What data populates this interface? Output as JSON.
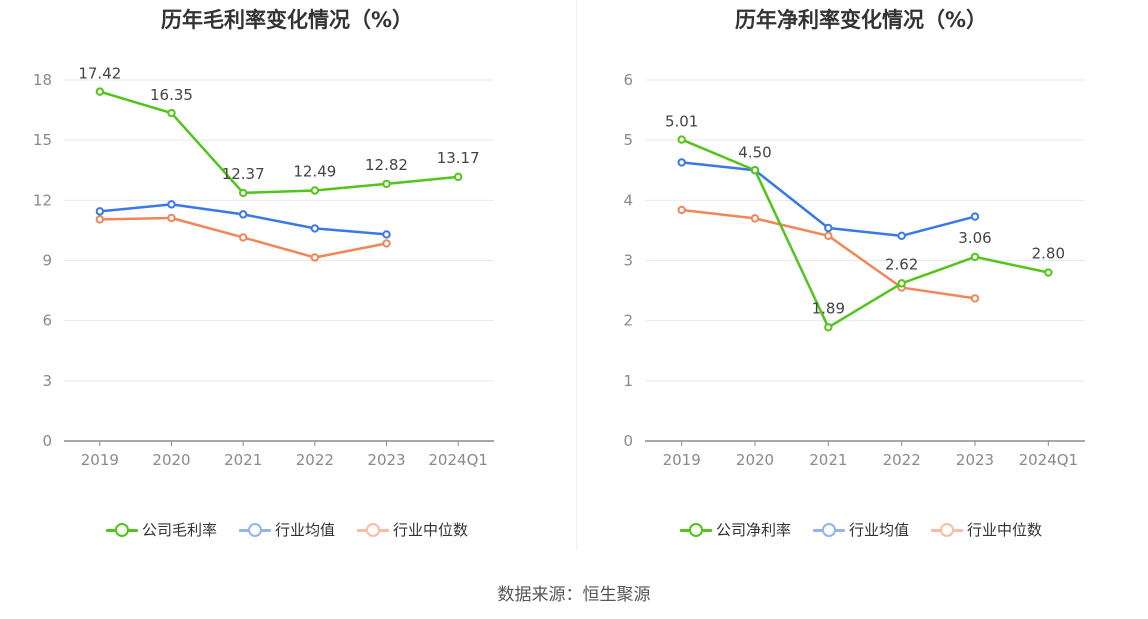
{
  "charts": [
    {
      "title": "历年毛利率变化情况（%）",
      "legend": [
        "公司毛利率",
        "行业均值",
        "行业中位数"
      ]
    },
    {
      "title": "历年净利率变化情况（%）",
      "legend": [
        "公司净利率",
        "行业均值",
        "行业中位数"
      ]
    }
  ],
  "source": "数据来源：恒生聚源",
  "colors": {
    "company": "#52c41a",
    "mean": "#3b78e7",
    "median": "#f0865a"
  },
  "chart_data": [
    {
      "type": "line",
      "title": "历年毛利率变化情况（%）",
      "categories": [
        "2019",
        "2020",
        "2021",
        "2022",
        "2023",
        "2024Q1"
      ],
      "ylim": [
        0,
        18
      ],
      "yticks": [
        0,
        3,
        6,
        9,
        12,
        15,
        18
      ],
      "grid": true,
      "legend_position": "bottom",
      "series": [
        {
          "name": "公司毛利率",
          "color": "#52c41a",
          "values": [
            17.42,
            16.35,
            12.37,
            12.49,
            12.82,
            13.17
          ],
          "labels": [
            "17.42",
            "16.35",
            "12.37",
            "12.49",
            "12.82",
            "13.17"
          ]
        },
        {
          "name": "行业均值",
          "color": "#3b78e7",
          "values": [
            11.45,
            11.8,
            11.3,
            10.6,
            10.3,
            null
          ]
        },
        {
          "name": "行业中位数",
          "color": "#f0865a",
          "values": [
            11.05,
            11.12,
            10.15,
            9.15,
            9.85,
            null
          ]
        }
      ]
    },
    {
      "type": "line",
      "title": "历年净利率变化情况（%）",
      "categories": [
        "2019",
        "2020",
        "2021",
        "2022",
        "2023",
        "2024Q1"
      ],
      "ylim": [
        0,
        6
      ],
      "yticks": [
        0,
        1,
        2,
        3,
        4,
        5,
        6
      ],
      "grid": true,
      "legend_position": "bottom",
      "series": [
        {
          "name": "公司净利率",
          "color": "#52c41a",
          "values": [
            5.01,
            4.5,
            1.89,
            2.62,
            3.06,
            2.8
          ],
          "labels": [
            "5.01",
            "4.50",
            "1.89",
            "2.62",
            "3.06",
            "2.80"
          ]
        },
        {
          "name": "行业均值",
          "color": "#3b78e7",
          "values": [
            4.63,
            4.5,
            3.54,
            3.41,
            3.73,
            null
          ]
        },
        {
          "name": "行业中位数",
          "color": "#f0865a",
          "values": [
            3.84,
            3.7,
            3.41,
            2.55,
            2.37,
            null
          ]
        }
      ]
    }
  ]
}
